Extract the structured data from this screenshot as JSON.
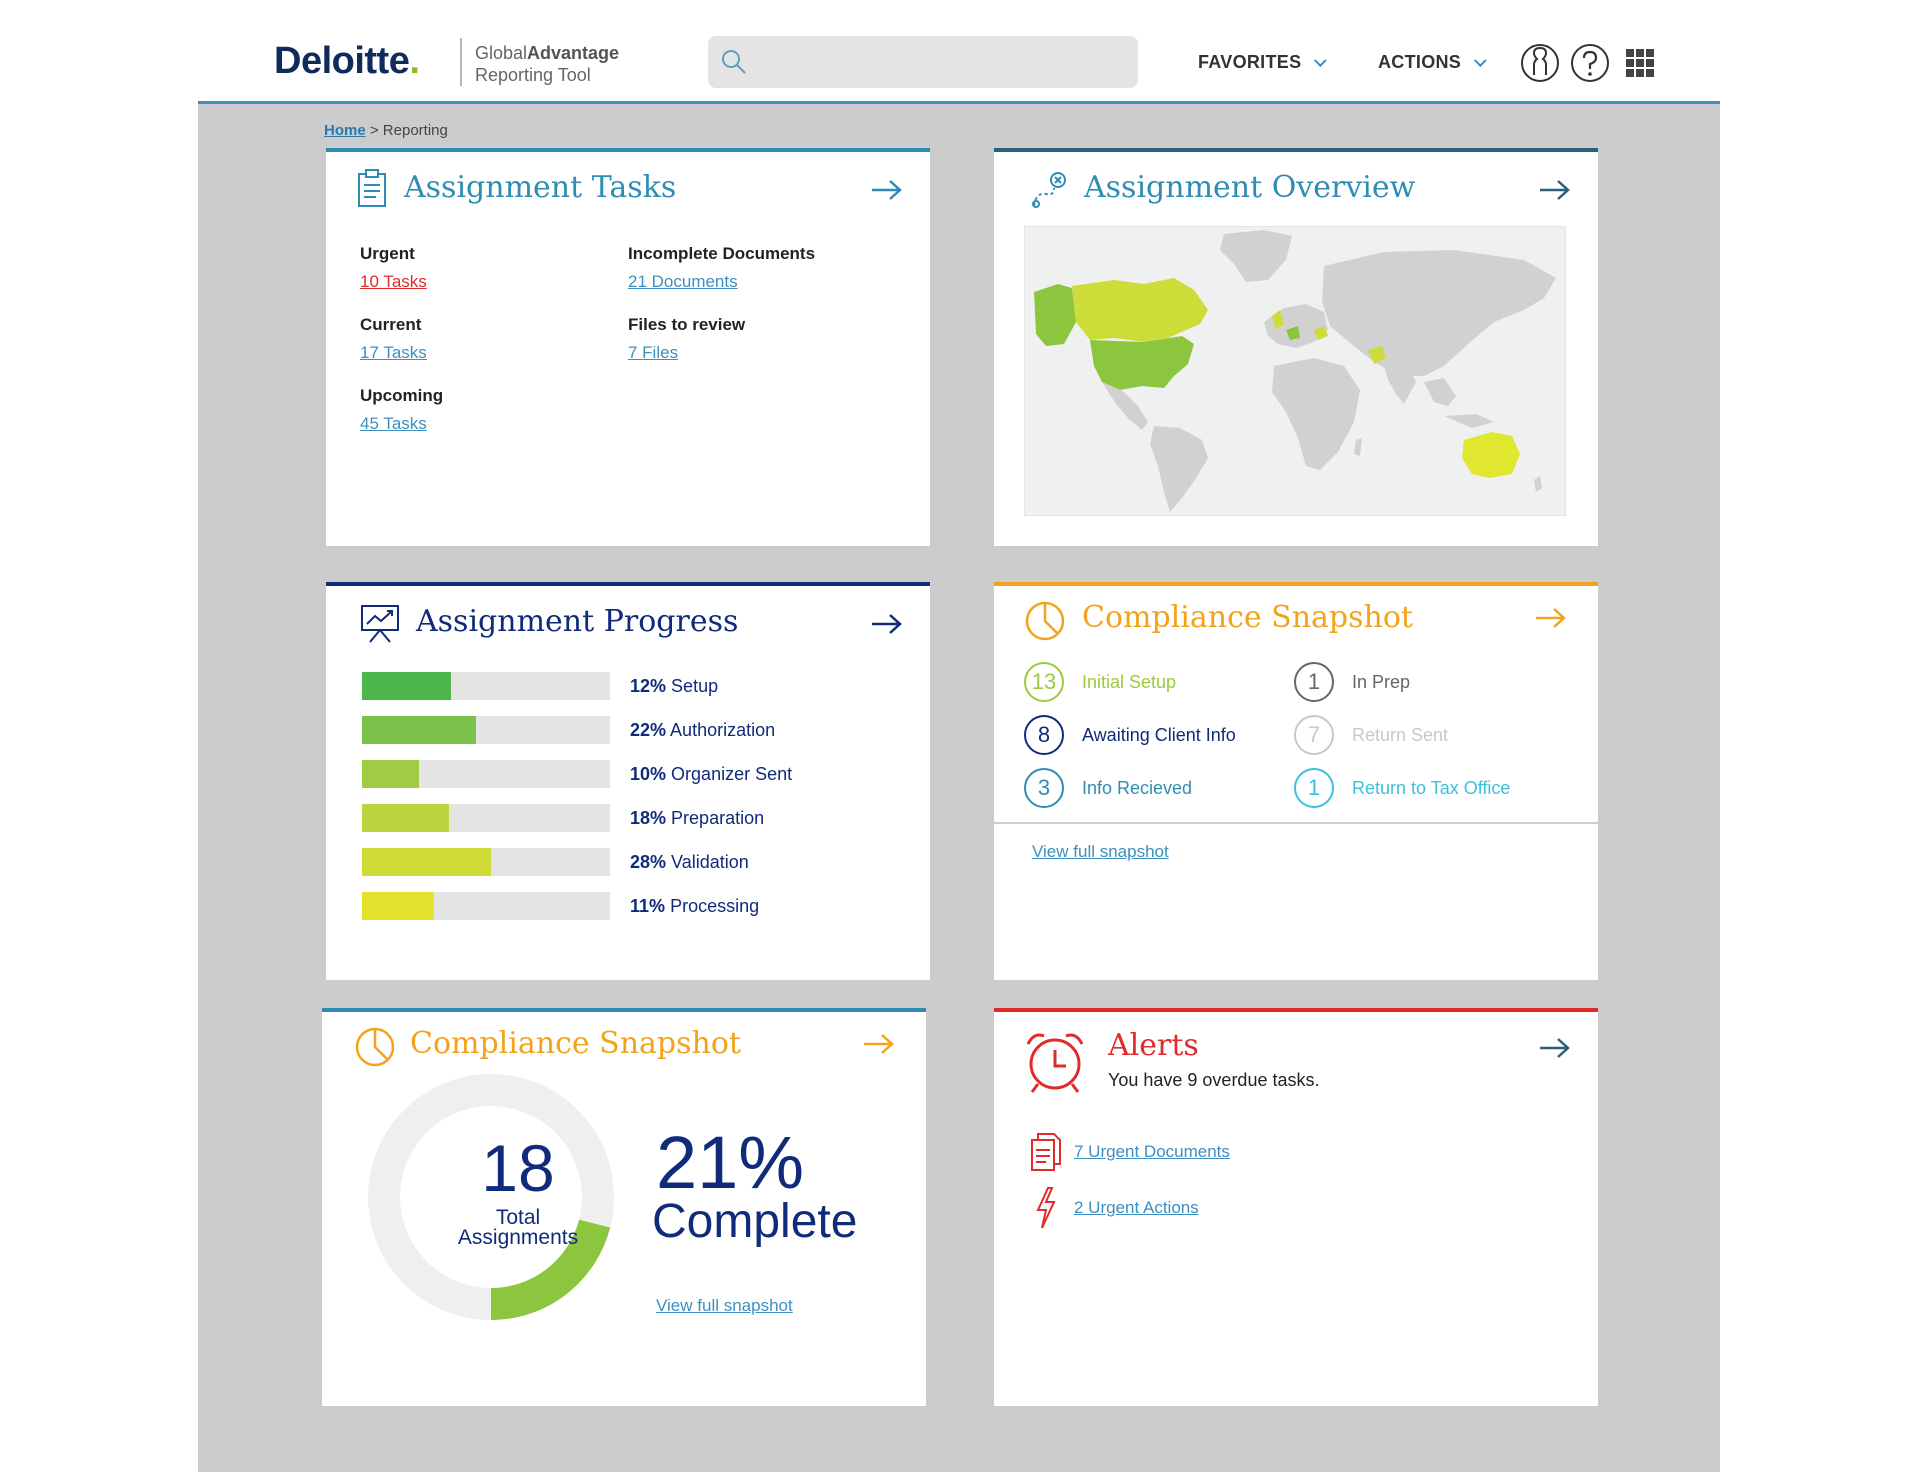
{
  "brand": {
    "logo_text": "Deloitte",
    "logo_dot": ".",
    "product_light": "Global",
    "product_bold": "Advantage",
    "product_sub": "Reporting Tool"
  },
  "search": {
    "placeholder": ""
  },
  "nav": {
    "favorites": "FAVORITES",
    "actions": "ACTIONS"
  },
  "breadcrumb": {
    "home": "Home",
    "sep": " > ",
    "current": "Reporting"
  },
  "colors": {
    "teal": "#2f8db3",
    "navy": "#0f2b7a",
    "orange": "#f2a31b",
    "red": "#e02b2b",
    "green": "#86bc25"
  },
  "tasks": {
    "title": "Assignment Tasks",
    "items": [
      {
        "label": "Urgent",
        "link": "10 Tasks"
      },
      {
        "label": "Current",
        "link": "17 Tasks"
      },
      {
        "label": "Upcoming",
        "link": "45 Tasks"
      },
      {
        "label": "Incomplete Documents",
        "link": "21 Documents"
      },
      {
        "label": "Files to review",
        "link": "7 Files"
      }
    ]
  },
  "overview": {
    "title": "Assignment Overview"
  },
  "progress": {
    "title": "Assignment Progress",
    "bars": [
      {
        "pct": "12%",
        "label": "Setup",
        "value": 0.36,
        "color": "#4cb54b"
      },
      {
        "pct": "22%",
        "label": "Authorization",
        "value": 0.46,
        "color": "#7cc24a"
      },
      {
        "pct": "10%",
        "label": "Organizer Sent",
        "value": 0.23,
        "color": "#a0cb45"
      },
      {
        "pct": "18%",
        "label": "Preparation",
        "value": 0.35,
        "color": "#bdd43e"
      },
      {
        "pct": "28%",
        "label": "Validation",
        "value": 0.52,
        "color": "#cfdc36"
      },
      {
        "pct": "11%",
        "label": "Processing",
        "value": 0.29,
        "color": "#e5e22e"
      }
    ]
  },
  "snapshot1": {
    "title": "Compliance Snapshot",
    "statuses": [
      {
        "count": "13",
        "label": "Initial Setup",
        "color": "#9bcb3c"
      },
      {
        "count": "8",
        "label": "Awaiting Client Info",
        "color": "#0f2b7a"
      },
      {
        "count": "3",
        "label": "Info Recieved",
        "color": "#2f8db3"
      },
      {
        "count": "1",
        "label": "In Prep",
        "color": "#666666"
      },
      {
        "count": "7",
        "label": "Return Sent",
        "color": "#c8c8c8"
      },
      {
        "count": "1",
        "label": "Return to Tax Office",
        "color": "#3cc0e0"
      }
    ],
    "link": "View full snapshot"
  },
  "snapshot2": {
    "title": "Compliance Snapshot",
    "total": "18",
    "total_label_1": "Total",
    "total_label_2": "Assignments",
    "percent": "21%",
    "percent_label": "Complete",
    "complete_fraction": 0.21,
    "link": "View full snapshot"
  },
  "alerts": {
    "title": "Alerts",
    "message": "You have 9 overdue tasks.",
    "docs": "7 Urgent Documents",
    "actions": "2 Urgent Actions"
  }
}
